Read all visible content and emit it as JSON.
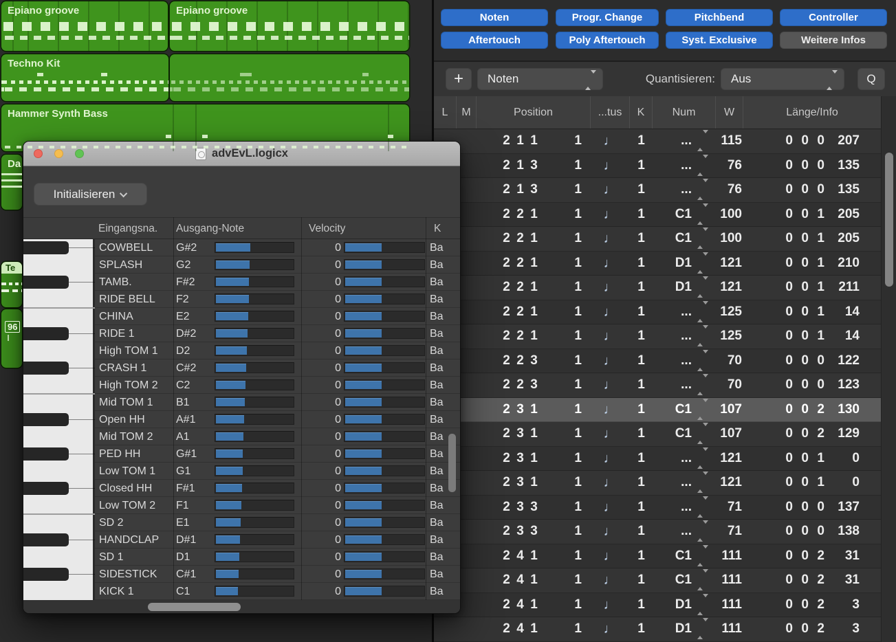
{
  "colors": {
    "accent_blue": "#2e6ec9",
    "bar_blue": "#3e74ab",
    "region_green": "#3f941d",
    "selected_row_gray": "#5b5b5b"
  },
  "tracks_area": {
    "regions": [
      {
        "id": "epiano1",
        "label": "Epiano groove"
      },
      {
        "id": "epiano2",
        "label": "Epiano groove"
      },
      {
        "id": "techno1",
        "label": "Techno Kit"
      },
      {
        "id": "techno2",
        "label": ""
      },
      {
        "id": "hammer",
        "label": "Hammer Synth Bass"
      },
      {
        "id": "da",
        "label": "Da"
      },
      {
        "id": "te",
        "label": "Te"
      },
      {
        "id": "n96",
        "label": "96"
      }
    ]
  },
  "event_list": {
    "filter_buttons_row1": [
      {
        "label": "Noten",
        "active": true
      },
      {
        "label": "Progr. Change",
        "active": true
      },
      {
        "label": "Pitchbend",
        "active": true
      },
      {
        "label": "Controller",
        "active": true
      }
    ],
    "filter_buttons_row2": [
      {
        "label": "Aftertouch",
        "active": true
      },
      {
        "label": "Poly Aftertouch",
        "active": true
      },
      {
        "label": "Syst. Exclusive",
        "active": true
      },
      {
        "label": "Weitere Infos",
        "active": false
      }
    ],
    "toolbar": {
      "add": "+",
      "type_value": "Noten",
      "quantize_label": "Quantisieren:",
      "quantize_value": "Aus",
      "q": "Q"
    },
    "columns": [
      "L",
      "M",
      "Position",
      "...tus",
      "K",
      "Num",
      "W",
      "Länge/Info"
    ],
    "note_glyph": "♩",
    "rows": [
      {
        "pos": [
          "2",
          "1",
          "1"
        ],
        "tick": "1",
        "ch": "1",
        "num": "...",
        "w": "115",
        "len": [
          "0",
          "0",
          "0",
          "207"
        ],
        "selected": false
      },
      {
        "pos": [
          "2",
          "1",
          "3"
        ],
        "tick": "1",
        "ch": "1",
        "num": "...",
        "w": "76",
        "len": [
          "0",
          "0",
          "0",
          "135"
        ],
        "selected": false
      },
      {
        "pos": [
          "2",
          "1",
          "3"
        ],
        "tick": "1",
        "ch": "1",
        "num": "...",
        "w": "76",
        "len": [
          "0",
          "0",
          "0",
          "135"
        ],
        "selected": false
      },
      {
        "pos": [
          "2",
          "2",
          "1"
        ],
        "tick": "1",
        "ch": "1",
        "num": "C1",
        "w": "100",
        "len": [
          "0",
          "0",
          "1",
          "205"
        ],
        "selected": false
      },
      {
        "pos": [
          "2",
          "2",
          "1"
        ],
        "tick": "1",
        "ch": "1",
        "num": "C1",
        "w": "100",
        "len": [
          "0",
          "0",
          "1",
          "205"
        ],
        "selected": false
      },
      {
        "pos": [
          "2",
          "2",
          "1"
        ],
        "tick": "1",
        "ch": "1",
        "num": "D1",
        "w": "121",
        "len": [
          "0",
          "0",
          "1",
          "210"
        ],
        "selected": false
      },
      {
        "pos": [
          "2",
          "2",
          "1"
        ],
        "tick": "1",
        "ch": "1",
        "num": "D1",
        "w": "121",
        "len": [
          "0",
          "0",
          "1",
          "211"
        ],
        "selected": false
      },
      {
        "pos": [
          "2",
          "2",
          "1"
        ],
        "tick": "1",
        "ch": "1",
        "num": "...",
        "w": "125",
        "len": [
          "0",
          "0",
          "1",
          "14"
        ],
        "selected": false
      },
      {
        "pos": [
          "2",
          "2",
          "1"
        ],
        "tick": "1",
        "ch": "1",
        "num": "...",
        "w": "125",
        "len": [
          "0",
          "0",
          "1",
          "14"
        ],
        "selected": false
      },
      {
        "pos": [
          "2",
          "2",
          "3"
        ],
        "tick": "1",
        "ch": "1",
        "num": "...",
        "w": "70",
        "len": [
          "0",
          "0",
          "0",
          "122"
        ],
        "selected": false
      },
      {
        "pos": [
          "2",
          "2",
          "3"
        ],
        "tick": "1",
        "ch": "1",
        "num": "...",
        "w": "70",
        "len": [
          "0",
          "0",
          "0",
          "123"
        ],
        "selected": false
      },
      {
        "pos": [
          "2",
          "3",
          "1"
        ],
        "tick": "1",
        "ch": "1",
        "num": "C1",
        "w": "107",
        "len": [
          "0",
          "0",
          "2",
          "130"
        ],
        "selected": true
      },
      {
        "pos": [
          "2",
          "3",
          "1"
        ],
        "tick": "1",
        "ch": "1",
        "num": "C1",
        "w": "107",
        "len": [
          "0",
          "0",
          "2",
          "129"
        ],
        "selected": false
      },
      {
        "pos": [
          "2",
          "3",
          "1"
        ],
        "tick": "1",
        "ch": "1",
        "num": "...",
        "w": "121",
        "len": [
          "0",
          "0",
          "1",
          "0"
        ],
        "selected": false
      },
      {
        "pos": [
          "2",
          "3",
          "1"
        ],
        "tick": "1",
        "ch": "1",
        "num": "...",
        "w": "121",
        "len": [
          "0",
          "0",
          "1",
          "0"
        ],
        "selected": false
      },
      {
        "pos": [
          "2",
          "3",
          "3"
        ],
        "tick": "1",
        "ch": "1",
        "num": "...",
        "w": "71",
        "len": [
          "0",
          "0",
          "0",
          "137"
        ],
        "selected": false
      },
      {
        "pos": [
          "2",
          "3",
          "3"
        ],
        "tick": "1",
        "ch": "1",
        "num": "...",
        "w": "71",
        "len": [
          "0",
          "0",
          "0",
          "138"
        ],
        "selected": false
      },
      {
        "pos": [
          "2",
          "4",
          "1"
        ],
        "tick": "1",
        "ch": "1",
        "num": "C1",
        "w": "111",
        "len": [
          "0",
          "0",
          "2",
          "31"
        ],
        "selected": false
      },
      {
        "pos": [
          "2",
          "4",
          "1"
        ],
        "tick": "1",
        "ch": "1",
        "num": "C1",
        "w": "111",
        "len": [
          "0",
          "0",
          "2",
          "31"
        ],
        "selected": false
      },
      {
        "pos": [
          "2",
          "4",
          "1"
        ],
        "tick": "1",
        "ch": "1",
        "num": "D1",
        "w": "111",
        "len": [
          "0",
          "0",
          "2",
          "3"
        ],
        "selected": false
      },
      {
        "pos": [
          "2",
          "4",
          "1"
        ],
        "tick": "1",
        "ch": "1",
        "num": "D1",
        "w": "111",
        "len": [
          "0",
          "0",
          "2",
          "3"
        ],
        "selected": false
      }
    ]
  },
  "mapped_instrument": {
    "window_title": "advEvL.logicx",
    "menu_button": "Initialisieren",
    "columns": [
      "Eingangsna.",
      "Ausgang-Note",
      "Velocity",
      "K"
    ],
    "rows": [
      {
        "name": "COWBELL",
        "note": "G#2",
        "vel": "0",
        "ch": "Ba"
      },
      {
        "name": "SPLASH",
        "note": "G2",
        "vel": "0",
        "ch": "Ba"
      },
      {
        "name": "TAMB.",
        "note": "F#2",
        "vel": "0",
        "ch": "Ba"
      },
      {
        "name": "RIDE BELL",
        "note": "F2",
        "vel": "0",
        "ch": "Ba"
      },
      {
        "name": "CHINA",
        "note": "E2",
        "vel": "0",
        "ch": "Ba"
      },
      {
        "name": "RIDE 1",
        "note": "D#2",
        "vel": "0",
        "ch": "Ba"
      },
      {
        "name": "High TOM 1",
        "note": "D2",
        "vel": "0",
        "ch": "Ba"
      },
      {
        "name": "CRASH 1",
        "note": "C#2",
        "vel": "0",
        "ch": "Ba"
      },
      {
        "name": "High TOM 2",
        "note": "C2",
        "vel": "0",
        "ch": "Ba"
      },
      {
        "name": "Mid TOM 1",
        "note": "B1",
        "vel": "0",
        "ch": "Ba"
      },
      {
        "name": "Open HH",
        "note": "A#1",
        "vel": "0",
        "ch": "Ba"
      },
      {
        "name": "Mid TOM 2",
        "note": "A1",
        "vel": "0",
        "ch": "Ba"
      },
      {
        "name": "PED HH",
        "note": "G#1",
        "vel": "0",
        "ch": "Ba"
      },
      {
        "name": "Low TOM 1",
        "note": "G1",
        "vel": "0",
        "ch": "Ba"
      },
      {
        "name": "Closed HH",
        "note": "F#1",
        "vel": "0",
        "ch": "Ba"
      },
      {
        "name": "Low TOM 2",
        "note": "F1",
        "vel": "0",
        "ch": "Ba"
      },
      {
        "name": "SD 2",
        "note": "E1",
        "vel": "0",
        "ch": "Ba"
      },
      {
        "name": "HANDCLAP",
        "note": "D#1",
        "vel": "0",
        "ch": "Ba"
      },
      {
        "name": "SD 1",
        "note": "D1",
        "vel": "0",
        "ch": "Ba"
      },
      {
        "name": "SIDESTICK",
        "note": "C#1",
        "vel": "0",
        "ch": "Ba"
      },
      {
        "name": "KICK 1",
        "note": "C1",
        "vel": "0",
        "ch": "Ba"
      }
    ]
  }
}
